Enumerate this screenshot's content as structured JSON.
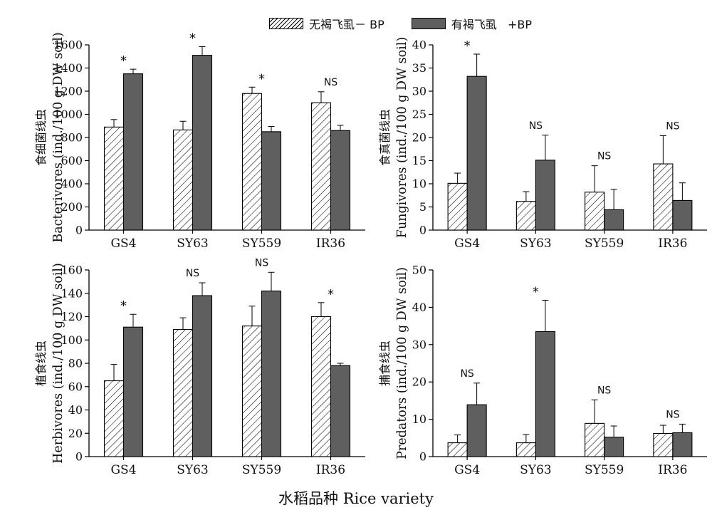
{
  "legend": {
    "no_bph": "无褐飞虱－ BP",
    "with_bph": "有褐飞虱   +BP",
    "no_bph_color": "#ffffff",
    "with_bph_color": "#5f5f5f"
  },
  "x_title": "水稻品种  Rice variety",
  "chart_data": [
    {
      "type": "bar",
      "panel": "top-left",
      "categories": [
        "GS4",
        "SY63",
        "SY559",
        "IR36"
      ],
      "ylabel": "Bacterivores (ind./100 g DW soil)",
      "ylabel_cn": "食细菌线虫",
      "ylim": [
        0,
        1600
      ],
      "yticks": [
        0,
        200,
        400,
        600,
        800,
        1000,
        1200,
        1400,
        1600
      ],
      "series": [
        {
          "name": "无褐飞虱－ BP",
          "values": [
            890,
            865,
            1180,
            1100
          ],
          "errors": [
            65,
            75,
            55,
            95
          ]
        },
        {
          "name": "有褐飞虱   +BP",
          "values": [
            1350,
            1510,
            850,
            860
          ],
          "errors": [
            40,
            75,
            45,
            45
          ]
        }
      ],
      "annotations": [
        "*",
        "*",
        "*",
        "NS"
      ]
    },
    {
      "type": "bar",
      "panel": "top-right",
      "categories": [
        "GS4",
        "SY63",
        "SY559",
        "IR36"
      ],
      "ylabel": "Fungivores (ind./100 g DW soil)",
      "ylabel_cn": "食真菌线虫",
      "ylim": [
        0,
        40
      ],
      "yticks": [
        0,
        5,
        10,
        15,
        20,
        25,
        30,
        35,
        40
      ],
      "series": [
        {
          "name": "无褐飞虱－ BP",
          "values": [
            10.1,
            6.2,
            8.2,
            14.3
          ],
          "errors": [
            2.2,
            2.1,
            5.7,
            6.1
          ]
        },
        {
          "name": "有褐飞虱   +BP",
          "values": [
            33.2,
            15.1,
            4.4,
            6.4
          ],
          "errors": [
            4.8,
            5.4,
            4.4,
            3.8
          ]
        }
      ],
      "annotations": [
        "*",
        "NS",
        "NS",
        "NS"
      ]
    },
    {
      "type": "bar",
      "panel": "bottom-left",
      "categories": [
        "GS4",
        "SY63",
        "SY559",
        "IR36"
      ],
      "ylabel": "Herbivores (ind./100 g DW soil)",
      "ylabel_cn": "植食线虫",
      "ylim": [
        0,
        160
      ],
      "yticks": [
        0,
        20,
        40,
        60,
        80,
        100,
        120,
        140,
        160
      ],
      "series": [
        {
          "name": "无褐飞虱－ BP",
          "values": [
            65,
            109,
            112,
            120
          ],
          "errors": [
            14,
            10,
            17,
            12
          ]
        },
        {
          "name": "有褐飞虱   +BP",
          "values": [
            111,
            138,
            142,
            78
          ],
          "errors": [
            11,
            11,
            16,
            2
          ]
        }
      ],
      "annotations": [
        "*",
        "NS",
        "NS",
        "*"
      ]
    },
    {
      "type": "bar",
      "panel": "bottom-right",
      "categories": [
        "GS4",
        "SY63",
        "SY559",
        "IR36"
      ],
      "ylabel": "Predators (ind./100 g DW soil)",
      "ylabel_cn": "捕食线虫",
      "ylim": [
        0,
        50
      ],
      "yticks": [
        0,
        10,
        20,
        30,
        40,
        50
      ],
      "series": [
        {
          "name": "无褐飞虱－ BP",
          "values": [
            3.7,
            3.7,
            8.9,
            6.2
          ],
          "errors": [
            2.1,
            2.2,
            6.3,
            2.2
          ]
        },
        {
          "name": "有褐飞虱   +BP",
          "values": [
            13.9,
            33.5,
            5.2,
            6.4
          ],
          "errors": [
            5.8,
            8.4,
            3.0,
            2.3
          ]
        }
      ],
      "annotations": [
        "NS",
        "*",
        "NS",
        "NS"
      ]
    }
  ]
}
